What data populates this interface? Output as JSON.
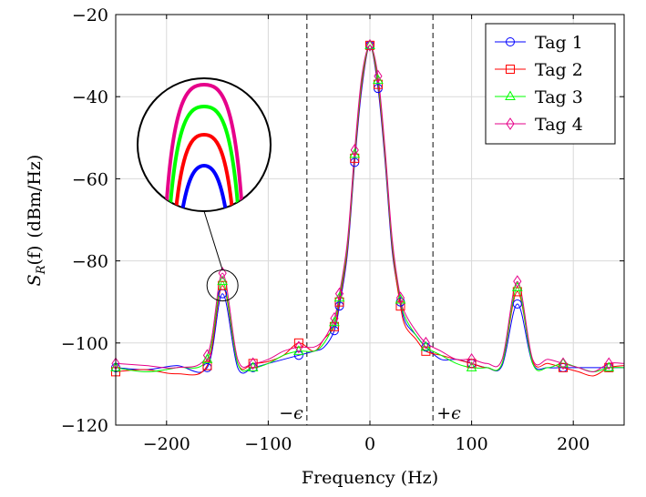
{
  "chart_data": {
    "type": "line",
    "xlabel": "Frequency (Hz)",
    "ylabel": "S_R(f) (dBm/Hz)",
    "ylabel_parts": {
      "sym": "S",
      "sub": "R",
      "arg": "(f)",
      "unit": "(dBm/Hz)"
    },
    "xlim": [
      -250,
      250
    ],
    "ylim": [
      -120,
      -20
    ],
    "x_ticks": [
      -200,
      -100,
      0,
      100,
      200
    ],
    "x_tick_labels": [
      "−200",
      "−100",
      "0",
      "100",
      "200"
    ],
    "y_ticks": [
      -120,
      -100,
      -80,
      -60,
      -40,
      -20
    ],
    "y_tick_labels": [
      "−120",
      "−100",
      "−80",
      "−60",
      "−40",
      "−20"
    ],
    "grid": true,
    "legend_position": "top-right",
    "vlines": [
      {
        "x": -62,
        "label": "−ϵ"
      },
      {
        "x": 62,
        "label": "+ϵ"
      }
    ],
    "series": [
      {
        "name": "Tag 1",
        "color": "#0000ff",
        "marker": "circle",
        "x": [
          -250,
          -220,
          -190,
          -160,
          -145,
          -130,
          -115,
          -100,
          -85,
          -70,
          -55,
          -45,
          -35,
          -30,
          -22,
          -15,
          -8,
          0,
          8,
          15,
          22,
          30,
          35,
          45,
          55,
          70,
          85,
          100,
          115,
          130,
          145,
          160,
          175,
          190,
          205,
          220,
          235,
          250
        ],
        "y": [
          -106,
          -106.5,
          -105.5,
          -106,
          -88,
          -106,
          -106,
          -105,
          -104,
          -103,
          -102,
          -101,
          -97,
          -91,
          -78,
          -56,
          -38,
          -27.5,
          -38,
          -56,
          -78,
          -90,
          -95,
          -98,
          -101,
          -104,
          -104,
          -105,
          -106,
          -105.5,
          -90.5,
          -105,
          -106,
          -106,
          -106,
          -106,
          -106,
          -106
        ]
      },
      {
        "name": "Tag 2",
        "color": "#ff0000",
        "marker": "square",
        "x": [
          -250,
          -220,
          -190,
          -160,
          -145,
          -130,
          -115,
          -100,
          -85,
          -70,
          -55,
          -45,
          -35,
          -30,
          -22,
          -15,
          -8,
          0,
          8,
          15,
          22,
          30,
          35,
          45,
          55,
          70,
          85,
          100,
          115,
          130,
          145,
          160,
          175,
          190,
          205,
          220,
          235,
          250
        ],
        "y": [
          -107,
          -106.5,
          -107.5,
          -105.5,
          -86,
          -105,
          -105,
          -104.5,
          -103,
          -100,
          -102,
          -99,
          -96,
          -90,
          -77,
          -55,
          -37,
          -27.5,
          -37,
          -55,
          -77,
          -91,
          -96,
          -99,
          -102,
          -103,
          -104,
          -105,
          -106,
          -105,
          -87.5,
          -104.5,
          -105,
          -106,
          -107,
          -108,
          -106,
          -105.5
        ]
      },
      {
        "name": "Tag 3",
        "color": "#00ff00",
        "marker": "triangle",
        "x": [
          -250,
          -220,
          -190,
          -160,
          -145,
          -130,
          -115,
          -100,
          -85,
          -70,
          -55,
          -45,
          -35,
          -30,
          -22,
          -15,
          -8,
          0,
          8,
          15,
          22,
          30,
          35,
          45,
          55,
          70,
          85,
          100,
          115,
          130,
          145,
          160,
          175,
          190,
          205,
          220,
          235,
          250
        ],
        "y": [
          -106,
          -107,
          -106,
          -104,
          -85,
          -105,
          -106,
          -105,
          -103,
          -102,
          -102,
          -100,
          -95,
          -89,
          -76,
          -54,
          -36,
          -27.5,
          -36,
          -54,
          -76,
          -89.5,
          -94,
          -98,
          -101,
          -103,
          -105,
          -106,
          -106,
          -105,
          -86.5,
          -105,
          -106,
          -105,
          -106,
          -107,
          -106,
          -106
        ]
      },
      {
        "name": "Tag 4",
        "color": "#e6008a",
        "marker": "diamond",
        "x": [
          -250,
          -220,
          -190,
          -160,
          -145,
          -130,
          -115,
          -100,
          -85,
          -70,
          -55,
          -45,
          -35,
          -30,
          -22,
          -15,
          -8,
          0,
          8,
          15,
          22,
          30,
          35,
          45,
          55,
          70,
          85,
          100,
          115,
          130,
          145,
          160,
          175,
          190,
          205,
          220,
          235,
          250
        ],
        "y": [
          -105,
          -105.5,
          -106,
          -103,
          -83,
          -104,
          -105,
          -104,
          -102,
          -101,
          -101,
          -99,
          -94,
          -88,
          -75,
          -53,
          -35,
          -27.5,
          -35,
          -53,
          -75,
          -89,
          -93,
          -97,
          -100,
          -102,
          -104,
          -104,
          -105,
          -104,
          -85,
          -104,
          -104,
          -105,
          -106,
          -107,
          -105,
          -105
        ]
      }
    ],
    "inset": {
      "center_x": -145,
      "center_y": -86
    }
  }
}
